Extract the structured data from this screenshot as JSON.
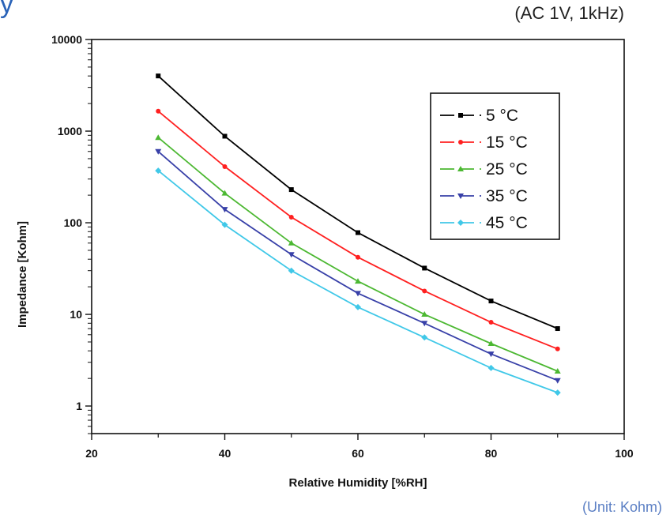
{
  "header": {
    "title_fragment": "y",
    "condition": "(AC 1V, 1kHz)",
    "unit_note": "(Unit: Kohm)"
  },
  "chart_data": {
    "type": "line",
    "xlabel": "Relative Humidity [%RH]",
    "ylabel": "Impedance [Kohm]",
    "xlim": [
      20,
      100
    ],
    "ylim": [
      0.5,
      10000
    ],
    "yscale": "log",
    "xticks": [
      20,
      40,
      60,
      80,
      100
    ],
    "yticks": [
      1,
      10,
      100,
      1000,
      10000
    ],
    "grid": false,
    "legend_position": "top-right",
    "x": [
      30,
      40,
      50,
      60,
      70,
      80,
      90
    ],
    "series": [
      {
        "name": "5 °C",
        "color": "#000000",
        "marker": "square",
        "values": [
          4000,
          880,
          230,
          78,
          32,
          14,
          7
        ]
      },
      {
        "name": "15 °C",
        "color": "#ff2020",
        "marker": "circle",
        "values": [
          1650,
          410,
          115,
          42,
          18,
          8.2,
          4.2
        ]
      },
      {
        "name": "25 °C",
        "color": "#4cb832",
        "marker": "triangle-up",
        "values": [
          850,
          210,
          60,
          23,
          10,
          4.8,
          2.4
        ]
      },
      {
        "name": "35 °C",
        "color": "#3840a8",
        "marker": "triangle-down",
        "values": [
          600,
          140,
          45,
          17,
          8,
          3.7,
          1.9
        ]
      },
      {
        "name": "45 °C",
        "color": "#40c8e8",
        "marker": "diamond",
        "values": [
          370,
          95,
          30,
          12,
          5.6,
          2.6,
          1.4
        ]
      }
    ]
  }
}
